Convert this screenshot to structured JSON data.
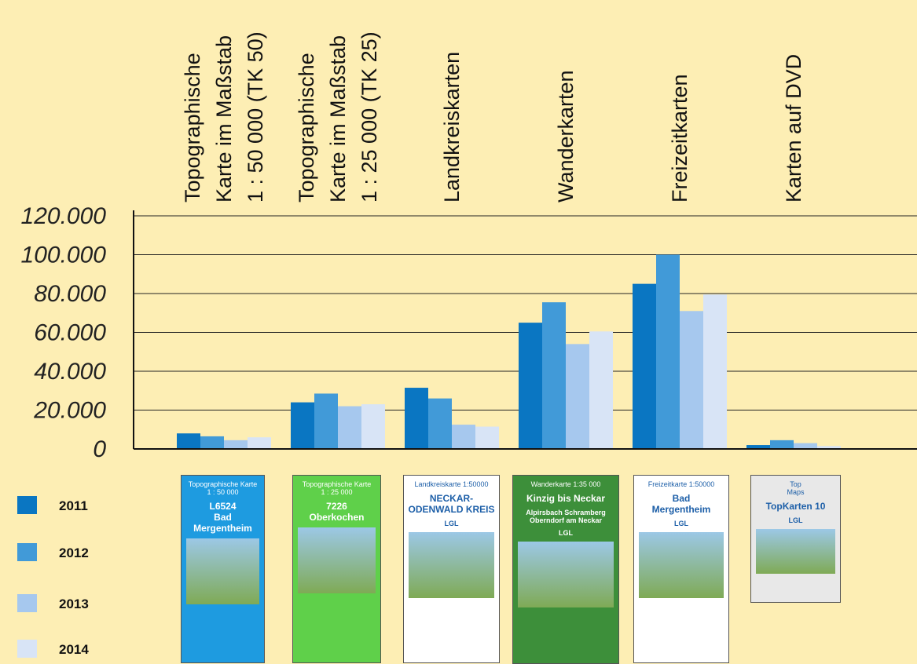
{
  "chart_data": {
    "type": "bar",
    "categories": [
      "Topographische\nKarte im Maßstab\n1 : 50 000 (TK 50)",
      "Topographische\nKarte im Maßstab\n1 : 25 000 (TK 25)",
      "Landkreiskarten",
      "Wanderkarten",
      "Freizeitkarten",
      "Karten auf DVD"
    ],
    "series": [
      {
        "name": "2011",
        "color": "#0a76c2",
        "values": [
          8000,
          24000,
          31500,
          65000,
          85000,
          2000
        ]
      },
      {
        "name": "2012",
        "color": "#419ad8",
        "values": [
          6500,
          28500,
          26000,
          75500,
          100000,
          4500
        ]
      },
      {
        "name": "2013",
        "color": "#a6c8ee",
        "values": [
          4500,
          22000,
          12500,
          54000,
          71000,
          3000
        ]
      },
      {
        "name": "2014",
        "color": "#d8e4f6",
        "values": [
          6000,
          23000,
          11500,
          60500,
          79500,
          1500
        ]
      }
    ],
    "ylim": [
      0,
      120000
    ],
    "yticks": [
      0,
      {
        "value": 20000,
        "label": "20.000"
      },
      {
        "value": 40000,
        "label": "40.000"
      },
      {
        "value": 60000,
        "label": "60.000"
      },
      {
        "value": 80000,
        "label": "80.000"
      },
      {
        "value": 100000,
        "label": "100.000"
      },
      {
        "value": 120000,
        "label": "120.000"
      }
    ],
    "grid": true,
    "legend": "bottom-left"
  },
  "covers": [
    {
      "texts": [
        "Topographische Karte\n1 : 50 000",
        "L6524\nBad Mergentheim"
      ],
      "color": "#1e9be0"
    },
    {
      "texts": [
        "Topographische Karte\n1 : 25 000",
        "7226\nOberkochen"
      ],
      "color": "#5fd04a"
    },
    {
      "texts": [
        "Landkreiskarte 1:50000",
        "NECKAR-ODENWALD KREIS",
        "LGL"
      ],
      "color": "#ffffff"
    },
    {
      "texts": [
        "Wanderkarte 1:35 000",
        "Kinzig bis Neckar",
        "Alpirsbach Schramberg\nOberndorf am Neckar",
        "LGL"
      ],
      "color": "#3d8f3a"
    },
    {
      "texts": [
        "Freizeitkarte 1:50000",
        "Bad\nMergentheim",
        "LGL"
      ],
      "color": "#ffffff"
    },
    {
      "texts": [
        "Top\nMaps",
        "TopKarten 10",
        "LGL"
      ],
      "color": "#e8e8e8"
    }
  ]
}
